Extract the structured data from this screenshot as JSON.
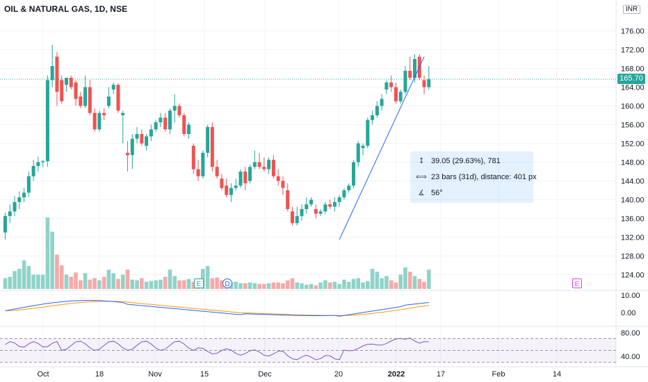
{
  "header": {
    "title": "OIL & NATURAL GAS, 1D, NSE",
    "currency": "INR"
  },
  "last_price": "165.70",
  "measure": {
    "price_change": "39.05 (29.63%), 781",
    "bars": "23 bars (31d), distance: 401 px",
    "angle": "56°"
  },
  "colors": {
    "up": "#26a69a",
    "down": "#ef5350",
    "up_vol": "#8fd3c9",
    "down_vol": "#f7a9a7",
    "macd": "#2962ff",
    "signal": "#ff9800",
    "rsi": "#7e57c2",
    "trend": "#2962ff"
  },
  "event_markers": [
    {
      "label": "E",
      "color": "#26a69a"
    },
    {
      "label": "D",
      "color": "#2962ff"
    },
    {
      "label": "E",
      "color": "#e040fb"
    }
  ],
  "chart_data": [
    {
      "type": "candlestick",
      "title": "OIL & NATURAL GAS, 1D, NSE",
      "y_ticks": [
        "176.00",
        "172.00",
        "168.00",
        "164.00",
        "160.00",
        "156.00",
        "152.00",
        "148.00",
        "144.00",
        "140.00",
        "136.00",
        "132.00",
        "128.00",
        "124.00"
      ],
      "x_ticks": [
        "Oct",
        "18",
        "Nov",
        "15",
        "Dec",
        "20",
        "2022",
        "17",
        "Feb",
        "14"
      ],
      "ohlc": [
        [
          133.0,
          137.2,
          131.5,
          136.5
        ],
        [
          136.5,
          139.0,
          135.0,
          137.5
        ],
        [
          137.5,
          140.8,
          136.5,
          139.5
        ],
        [
          139.5,
          141.8,
          138.0,
          140.5
        ],
        [
          140.5,
          142.5,
          139.5,
          141.5
        ],
        [
          141.5,
          146.0,
          140.5,
          145.0
        ],
        [
          145.0,
          148.5,
          144.0,
          147.2
        ],
        [
          147.2,
          149.2,
          146.0,
          148.0
        ],
        [
          148.0,
          148.5,
          147.0,
          148.2
        ],
        [
          148.2,
          166.5,
          147.0,
          165.5
        ],
        [
          165.5,
          173.0,
          164.0,
          168.5
        ],
        [
          170.5,
          171.5,
          160.0,
          163.0
        ],
        [
          165.5,
          166.5,
          160.5,
          161.0
        ],
        [
          164.5,
          166.0,
          163.0,
          166.0
        ],
        [
          166.0,
          166.5,
          163.5,
          164.0
        ],
        [
          165.0,
          165.5,
          160.0,
          161.5
        ],
        [
          162.0,
          163.0,
          159.5,
          160.0
        ],
        [
          160.0,
          166.5,
          159.5,
          164.0
        ],
        [
          164.0,
          165.5,
          158.0,
          158.5
        ],
        [
          158.5,
          159.5,
          154.5,
          155.0
        ],
        [
          155.0,
          159.0,
          154.5,
          158.5
        ],
        [
          158.5,
          159.5,
          157.0,
          158.0
        ],
        [
          160.0,
          164.0,
          159.5,
          162.0
        ],
        [
          163.5,
          165.0,
          162.5,
          164.5
        ],
        [
          164.5,
          164.8,
          158.5,
          159.0
        ],
        [
          158.0,
          159.0,
          152.0,
          158.5
        ],
        [
          150.0,
          152.5,
          146.0,
          149.5
        ],
        [
          149.5,
          154.0,
          146.5,
          153.0
        ],
        [
          153.0,
          155.5,
          152.0,
          154.0
        ],
        [
          154.0,
          155.0,
          151.5,
          152.0
        ],
        [
          151.5,
          154.0,
          150.5,
          153.5
        ],
        [
          153.5,
          156.0,
          152.5,
          155.0
        ],
        [
          155.0,
          157.0,
          154.5,
          156.5
        ],
        [
          156.5,
          158.5,
          155.5,
          157.5
        ],
        [
          157.5,
          158.5,
          154.5,
          155.0
        ],
        [
          155.0,
          159.5,
          154.0,
          159.0
        ],
        [
          159.0,
          162.5,
          156.5,
          160.0
        ],
        [
          160.0,
          160.5,
          157.5,
          158.0
        ],
        [
          158.0,
          158.5,
          153.5,
          154.0
        ],
        [
          154.0,
          156.5,
          153.0,
          156.0
        ],
        [
          151.5,
          152.0,
          145.5,
          146.5
        ],
        [
          146.5,
          148.5,
          144.0,
          145.0
        ],
        [
          145.0,
          150.5,
          144.5,
          150.0
        ],
        [
          150.0,
          156.0,
          149.0,
          155.5
        ],
        [
          155.5,
          156.5,
          146.0,
          147.0
        ],
        [
          147.0,
          148.5,
          144.5,
          145.0
        ],
        [
          144.5,
          145.5,
          142.0,
          142.5
        ],
        [
          143.0,
          144.5,
          140.5,
          141.0
        ],
        [
          141.0,
          143.5,
          139.5,
          142.5
        ],
        [
          142.5,
          144.5,
          142.0,
          143.0
        ],
        [
          143.0,
          146.5,
          142.5,
          146.0
        ],
        [
          146.0,
          147.0,
          142.0,
          143.5
        ],
        [
          144.0,
          147.5,
          143.5,
          147.0
        ],
        [
          147.0,
          150.5,
          146.5,
          148.0
        ],
        [
          148.0,
          150.0,
          146.5,
          147.0
        ],
        [
          147.0,
          149.0,
          146.0,
          146.5
        ],
        [
          146.5,
          149.0,
          145.5,
          148.5
        ],
        [
          148.5,
          149.5,
          144.5,
          145.0
        ],
        [
          145.0,
          146.5,
          143.0,
          144.0
        ],
        [
          144.0,
          145.0,
          141.0,
          142.5
        ],
        [
          142.0,
          143.5,
          137.5,
          138.0
        ],
        [
          137.5,
          138.5,
          134.5,
          135.0
        ],
        [
          135.0,
          138.5,
          134.5,
          136.5
        ],
        [
          136.5,
          139.0,
          135.5,
          138.0
        ],
        [
          138.0,
          140.5,
          137.0,
          139.0
        ],
        [
          139.0,
          140.5,
          138.5,
          140.0
        ],
        [
          138.0,
          139.0,
          136.0,
          137.0
        ],
        [
          137.0,
          138.0,
          136.5,
          137.5
        ],
        [
          137.5,
          139.5,
          137.0,
          139.0
        ],
        [
          139.0,
          140.0,
          138.0,
          138.5
        ],
        [
          138.5,
          140.5,
          137.5,
          139.5
        ],
        [
          139.5,
          141.0,
          138.5,
          140.5
        ],
        [
          140.5,
          142.5,
          140.0,
          142.0
        ],
        [
          142.0,
          143.5,
          141.5,
          143.0
        ],
        [
          143.0,
          148.5,
          142.5,
          148.0
        ],
        [
          148.0,
          152.5,
          147.0,
          152.0
        ],
        [
          151.0,
          152.0,
          149.5,
          151.5
        ],
        [
          151.5,
          157.5,
          151.0,
          157.0
        ],
        [
          157.0,
          159.0,
          156.0,
          158.0
        ],
        [
          158.0,
          161.0,
          157.5,
          160.0
        ],
        [
          160.0,
          162.5,
          159.0,
          161.5
        ],
        [
          163.5,
          165.5,
          162.5,
          165.0
        ],
        [
          165.0,
          166.5,
          163.0,
          164.0
        ],
        [
          164.0,
          165.0,
          160.5,
          161.0
        ],
        [
          161.0,
          163.5,
          160.5,
          163.0
        ],
        [
          163.0,
          168.5,
          162.5,
          167.5
        ],
        [
          167.5,
          170.5,
          165.5,
          166.0
        ],
        [
          166.0,
          171.0,
          165.0,
          170.0
        ],
        [
          170.5,
          171.0,
          165.5,
          166.0
        ],
        [
          165.5,
          166.5,
          162.5,
          164.0
        ],
        [
          164.0,
          168.5,
          163.5,
          165.7
        ]
      ],
      "volume_relative": [
        0.15,
        0.17,
        0.25,
        0.28,
        0.4,
        0.32,
        0.2,
        0.2,
        0.2,
        1.0,
        0.8,
        0.48,
        0.33,
        0.2,
        0.17,
        0.23,
        0.12,
        0.22,
        0.13,
        0.15,
        0.12,
        0.17,
        0.27,
        0.22,
        0.14,
        0.2,
        0.27,
        0.13,
        0.12,
        0.15,
        0.1,
        0.11,
        0.12,
        0.13,
        0.17,
        0.27,
        0.18,
        0.12,
        0.12,
        0.14,
        0.1,
        0.12,
        0.28,
        0.32,
        0.15,
        0.16,
        0.12,
        0.1,
        0.1,
        0.1,
        0.08,
        0.08,
        0.09,
        0.08,
        0.07,
        0.07,
        0.08,
        0.09,
        0.09,
        0.08,
        0.12,
        0.15,
        0.09,
        0.08,
        0.06,
        0.07,
        0.05,
        0.09,
        0.12,
        0.09,
        0.1,
        0.07,
        0.13,
        0.1,
        0.14,
        0.15,
        0.09,
        0.11,
        0.28,
        0.24,
        0.15,
        0.18,
        0.12,
        0.09,
        0.2,
        0.3,
        0.24,
        0.18,
        0.14,
        0.1,
        0.27
      ],
      "macd_ticks": [
        "10.00",
        "0.00"
      ],
      "rsi_ticks": [
        "80.00",
        "40.00"
      ],
      "rsi_bands": [
        70,
        50,
        30
      ]
    }
  ]
}
